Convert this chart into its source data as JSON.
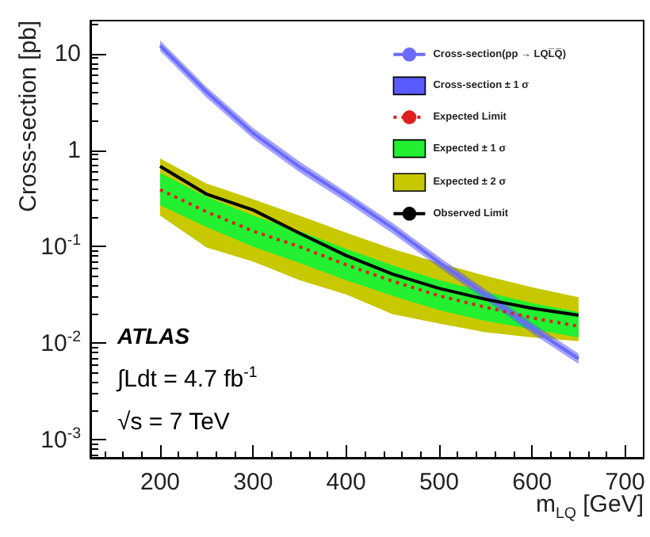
{
  "chart_data": {
    "type": "line",
    "xlabel": "m$_{LQ}$ [GeV]",
    "ylabel": "Cross-section [pb]",
    "x": [
      200,
      250,
      300,
      350,
      400,
      450,
      500,
      550,
      600,
      650
    ],
    "xlim": [
      125,
      720
    ],
    "xticks": [
      200,
      300,
      400,
      500,
      600,
      700
    ],
    "ylim": [
      0.00065,
      22
    ],
    "log": "y",
    "yticks": [
      {
        "value": 0.001,
        "label": "10$^{-3}$"
      },
      {
        "value": 0.01,
        "label": "10$^{-2}$"
      },
      {
        "value": 0.1,
        "label": "10$^{-1}$"
      },
      {
        "value": 1,
        "label": "1"
      },
      {
        "value": 10,
        "label": "10"
      }
    ],
    "legend": "top right",
    "grid": false,
    "series": [
      {
        "name": "Cross-section(pp → LQL̅Q̅)",
        "color": "#6a6aff",
        "line_style": "solid",
        "values": [
          12.1,
          4.0,
          1.5,
          0.67,
          0.33,
          0.156,
          0.069,
          0.032,
          0.0143,
          0.0069
        ]
      },
      {
        "name": "Cross-section ± 1 σ",
        "type": "line",
        "color": "#5a5aff",
        "values": [
          null,
          null,
          null,
          null,
          null,
          null,
          null,
          null,
          null,
          null
        ],
        "lower": [
          10.7,
          3.5,
          1.32,
          0.59,
          0.29,
          0.137,
          0.061,
          0.028,
          0.0126,
          0.0061
        ],
        "upper": [
          13.7,
          4.5,
          1.7,
          0.76,
          0.37,
          0.176,
          0.078,
          0.036,
          0.0162,
          0.0078
        ]
      },
      {
        "name": "Expected Limit",
        "color": "#e02020",
        "line_style": "dotted",
        "values": [
          0.39,
          0.23,
          0.145,
          0.1,
          0.065,
          0.044,
          0.031,
          0.0236,
          0.0183,
          0.015
        ]
      },
      {
        "name": "Expected ± 1 σ",
        "type": "line",
        "color": "#22f030",
        "values": [
          null,
          null,
          null,
          null,
          null,
          null,
          null,
          null,
          null,
          null
        ],
        "lower": [
          0.27,
          0.16,
          0.1,
          0.068,
          0.045,
          0.031,
          0.022,
          0.017,
          0.014,
          0.0115
        ],
        "upper": [
          0.58,
          0.33,
          0.21,
          0.145,
          0.095,
          0.064,
          0.045,
          0.034,
          0.026,
          0.021
        ]
      },
      {
        "name": "Expected ± 2 σ",
        "type": "line",
        "color": "#c8c800",
        "values": [
          null,
          null,
          null,
          null,
          null,
          null,
          null,
          null,
          null,
          null
        ],
        "lower": [
          0.21,
          0.098,
          0.07,
          0.045,
          0.032,
          0.02,
          0.016,
          0.013,
          0.0115,
          0.0105
        ],
        "upper": [
          0.82,
          0.45,
          0.31,
          0.21,
          0.14,
          0.095,
          0.068,
          0.05,
          0.038,
          0.03
        ]
      },
      {
        "name": "Observed Limit",
        "color": "#000000",
        "line_style": "solid",
        "values": [
          0.68,
          0.35,
          0.24,
          0.138,
          0.081,
          0.052,
          0.037,
          0.0285,
          0.023,
          0.0195
        ]
      }
    ],
    "annotations": [
      "ATLAS",
      "∫Ldt = 4.7 fb$^{-1}$",
      "√s = 7 TeV"
    ]
  }
}
